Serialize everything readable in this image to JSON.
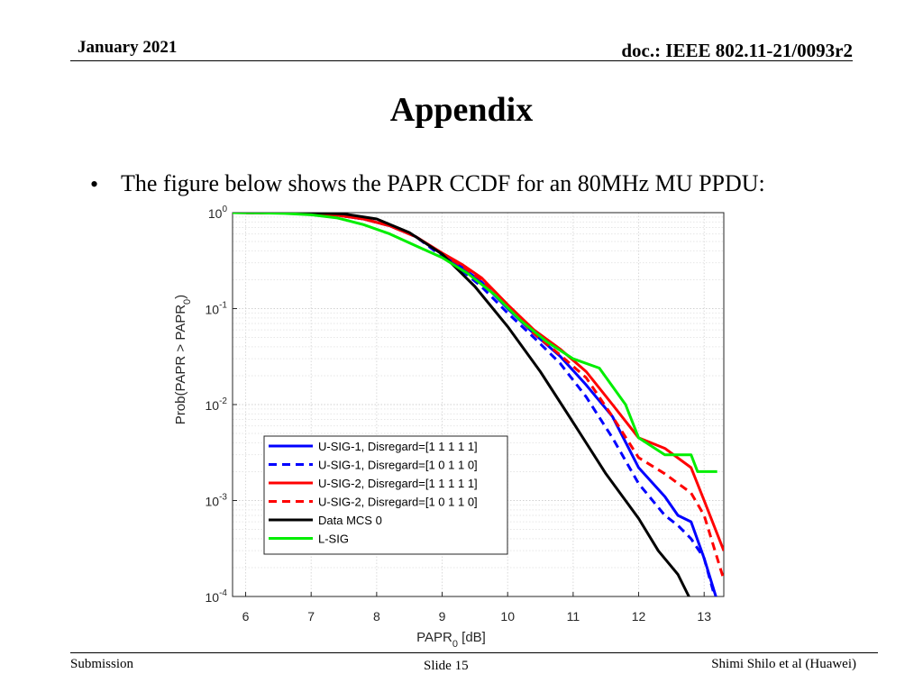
{
  "header": {
    "date": "January 2021",
    "doc": "doc.: IEEE 802.11-21/0093r2"
  },
  "slide": {
    "title": "Appendix",
    "bullet_symbol": "•",
    "bullet": "The figure below shows the PAPR CCDF for an 80MHz MU PPDU:"
  },
  "footer": {
    "left": "Submission",
    "center": "Slide 15",
    "right": "Shimi Shilo et al (Huawei)"
  },
  "chart_data": {
    "type": "line",
    "title": "",
    "xlabel": "PAPR",
    "xlabel_sub": "0",
    "xlabel_suffix": " [dB]",
    "ylabel": "Prob(PAPR > PAPR",
    "ylabel_sub": "0",
    "ylabel_suffix": ")",
    "xlim": [
      5.8,
      13.3
    ],
    "ylim": [
      0.0001,
      1
    ],
    "yscale": "log",
    "xticks": [
      6,
      7,
      8,
      9,
      10,
      11,
      12,
      13
    ],
    "ytick_labels": [
      {
        "value": 1,
        "base": "10",
        "exp": "0"
      },
      {
        "value": 0.1,
        "base": "10",
        "exp": "-1"
      },
      {
        "value": 0.01,
        "base": "10",
        "exp": "-2"
      },
      {
        "value": 0.001,
        "base": "10",
        "exp": "-3"
      },
      {
        "value": 0.0001,
        "base": "10",
        "exp": "-4"
      }
    ],
    "grid": true,
    "legend_position": "lower-left",
    "series": [
      {
        "name": "U-SIG-1, Disregard=[1 1 1 1 1]",
        "color": "#0000ff",
        "dash": false,
        "x": [
          5.8,
          6.2,
          6.6,
          7.0,
          7.4,
          7.8,
          8.2,
          8.6,
          9.0,
          9.3,
          9.6,
          10.0,
          10.4,
          10.8,
          11.2,
          11.6,
          12.0,
          12.4,
          12.6,
          12.8,
          13.0,
          13.2
        ],
        "y": [
          1,
          0.995,
          0.99,
          0.98,
          0.94,
          0.86,
          0.73,
          0.56,
          0.37,
          0.27,
          0.19,
          0.1,
          0.055,
          0.032,
          0.016,
          0.0075,
          0.0022,
          0.0011,
          0.0007,
          0.0006,
          0.00025,
          9e-05
        ]
      },
      {
        "name": "U-SIG-1, Disregard=[1 0 1 1 0]",
        "color": "#0000ff",
        "dash": true,
        "x": [
          5.8,
          6.2,
          6.6,
          7.0,
          7.4,
          7.8,
          8.2,
          8.6,
          9.0,
          9.3,
          9.6,
          10.0,
          10.4,
          10.8,
          11.2,
          11.6,
          12.0,
          12.4,
          12.6,
          12.8,
          13.0,
          13.2
        ],
        "y": [
          1,
          0.995,
          0.99,
          0.98,
          0.94,
          0.86,
          0.73,
          0.56,
          0.35,
          0.25,
          0.17,
          0.09,
          0.05,
          0.027,
          0.012,
          0.0045,
          0.0015,
          0.0007,
          0.00055,
          0.0004,
          0.00025,
          8e-05
        ]
      },
      {
        "name": "U-SIG-2, Disregard=[1 1 1 1 1]",
        "color": "#ff0000",
        "dash": false,
        "x": [
          5.8,
          6.2,
          6.6,
          7.0,
          7.4,
          7.8,
          8.2,
          8.6,
          9.0,
          9.3,
          9.6,
          10.0,
          10.4,
          10.8,
          11.2,
          11.6,
          12.0,
          12.4,
          12.8,
          13.0,
          13.3
        ],
        "y": [
          1,
          0.995,
          0.99,
          0.98,
          0.94,
          0.86,
          0.73,
          0.56,
          0.38,
          0.29,
          0.21,
          0.11,
          0.06,
          0.038,
          0.022,
          0.01,
          0.0045,
          0.0035,
          0.0022,
          0.001,
          0.0003
        ]
      },
      {
        "name": "U-SIG-2, Disregard=[1 0 1 1 0]",
        "color": "#ff0000",
        "dash": true,
        "x": [
          5.8,
          6.2,
          6.6,
          7.0,
          7.4,
          7.8,
          8.2,
          8.6,
          9.0,
          9.3,
          9.6,
          10.0,
          10.4,
          10.8,
          11.2,
          11.6,
          12.0,
          12.4,
          12.8,
          13.0,
          13.3
        ],
        "y": [
          1,
          0.995,
          0.99,
          0.98,
          0.94,
          0.86,
          0.73,
          0.56,
          0.37,
          0.28,
          0.2,
          0.105,
          0.055,
          0.033,
          0.019,
          0.0075,
          0.0028,
          0.0019,
          0.0012,
          0.0007,
          0.00015
        ]
      },
      {
        "name": "Data MCS 0",
        "color": "#000000",
        "dash": false,
        "x": [
          5.8,
          6.5,
          7.0,
          7.5,
          8.0,
          8.5,
          9.0,
          9.5,
          10.0,
          10.5,
          11.0,
          11.5,
          12.0,
          12.3,
          12.6,
          12.8
        ],
        "y": [
          1,
          1,
          0.995,
          0.97,
          0.86,
          0.62,
          0.37,
          0.17,
          0.065,
          0.022,
          0.0065,
          0.0019,
          0.00065,
          0.0003,
          0.00017,
          9e-05
        ]
      },
      {
        "name": "L-SIG",
        "color": "#00ee00",
        "dash": false,
        "x": [
          5.8,
          6.2,
          6.6,
          7.0,
          7.4,
          7.8,
          8.2,
          8.6,
          9.0,
          9.4,
          9.8,
          10.2,
          10.6,
          11.0,
          11.4,
          11.8,
          12.0,
          12.4,
          12.8,
          12.9,
          13.2
        ],
        "y": [
          1,
          0.995,
          0.98,
          0.95,
          0.88,
          0.75,
          0.6,
          0.45,
          0.34,
          0.23,
          0.14,
          0.075,
          0.045,
          0.03,
          0.024,
          0.01,
          0.0045,
          0.003,
          0.003,
          0.002,
          0.002
        ]
      }
    ]
  }
}
